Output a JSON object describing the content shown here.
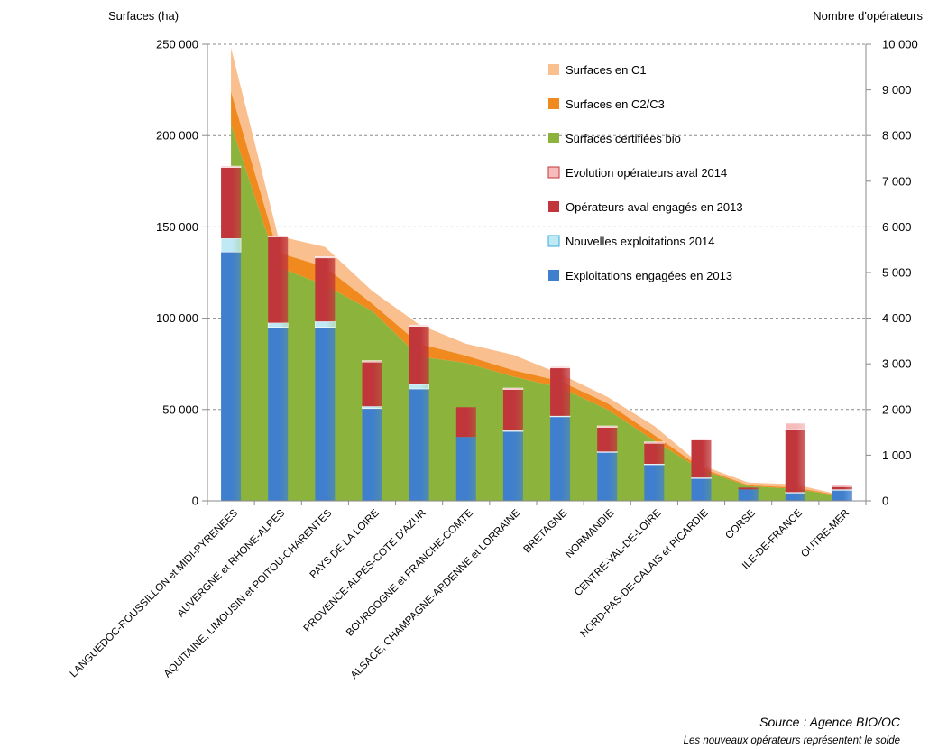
{
  "chart_data": {
    "type": "bar",
    "title": "",
    "y_left_label": "Surfaces (ha)",
    "y_right_label": "Nombre d'opérateurs",
    "y_left_lim": [
      0,
      250000
    ],
    "y_right_lim": [
      0,
      10000
    ],
    "y_left_ticks": [
      "0",
      "50 000",
      "100 000",
      "150 000",
      "200 000",
      "250 000"
    ],
    "y_right_ticks": [
      "0",
      "1 000",
      "2 000",
      "3 000",
      "4 000",
      "5 000",
      "6 000",
      "7 000",
      "8 000",
      "9 000",
      "10 000"
    ],
    "grid": true,
    "legend_position": "top-right",
    "categories": [
      "LANGUEDOC-ROUSSILLON et MIDI-PYRENEES",
      "AUVERGNE et RHONE-ALPES",
      "AQUITAINE, LIMOUSIN et POITOU-CHARENTES",
      "PAYS DE LA LOIRE",
      "PROVENCE-ALPES-COTE D'AZUR",
      "BOURGOGNE et FRANCHE-COMTE",
      "ALSACE, CHAMPAGNE-ARDENNE et LORRAINE",
      "BRETAGNE",
      "NORMANDIE",
      "CENTRE-VAL-DE-LOIRE",
      "NORD-PAS-DE-CALAIS et PICARDIE",
      "CORSE",
      "ILE-DE-FRANCE",
      "OUTRE-MER"
    ],
    "area_series": [
      {
        "name": "Surfaces certifiées bio",
        "color": "#8cb43c",
        "axis": "left",
        "values": [
          206000,
          128000,
          118000,
          104000,
          79000,
          75500,
          68000,
          62000,
          50000,
          33000,
          17000,
          8000,
          6500,
          2500
        ]
      },
      {
        "name": "Surfaces en C2/C3",
        "color": "#f08a1e",
        "axis": "left",
        "values": [
          18000,
          8000,
          10000,
          4000,
          7000,
          4000,
          3500,
          3500,
          3500,
          3000,
          1000,
          500,
          700,
          200
        ]
      },
      {
        "name": "Surfaces en C1",
        "color": "#f9bf8e",
        "axis": "left",
        "values": [
          24000,
          9000,
          11000,
          7000,
          10500,
          6500,
          8500,
          4000,
          3500,
          5000,
          1500,
          1500,
          1800,
          300
        ]
      }
    ],
    "bar_series": [
      {
        "name": "Exploitations engagées en 2013",
        "color": "#3f7fce",
        "axis": "right",
        "values": [
          5450,
          3800,
          3800,
          2020,
          2450,
          1400,
          1520,
          1840,
          1060,
          800,
          500,
          250,
          180,
          240
        ]
      },
      {
        "name": "Nouvelles exploitations 2014",
        "color": "#bfe9f5",
        "axis": "right",
        "values": [
          300,
          100,
          130,
          50,
          100,
          -20,
          20,
          20,
          20,
          10,
          10,
          -10,
          10,
          10
        ]
      },
      {
        "name": "Opérateurs aval engagés en 2013",
        "color": "#c0363a",
        "axis": "right",
        "values": [
          1550,
          1880,
          1390,
          970,
          1270,
          650,
          900,
          1050,
          530,
          450,
          820,
          40,
          1370,
          60
        ]
      },
      {
        "name": "Evolution opérateurs aval 2014",
        "color": "#f6bcbc",
        "axis": "right",
        "values": [
          30,
          20,
          30,
          30,
          30,
          0,
          30,
          30,
          30,
          30,
          20,
          0,
          140,
          30
        ]
      }
    ],
    "legend_order": [
      "Surfaces en C1",
      "Surfaces en C2/C3",
      "Surfaces certifiées bio",
      "Evolution opérateurs aval 2014",
      "Opérateurs aval engagés en 2013",
      "Nouvelles exploitations 2014",
      "Exploitations engagées en 2013"
    ]
  },
  "source": {
    "line1": "Source : Agence BIO/OC",
    "line2": "Les nouveaux opérateurs représentent le solde"
  }
}
